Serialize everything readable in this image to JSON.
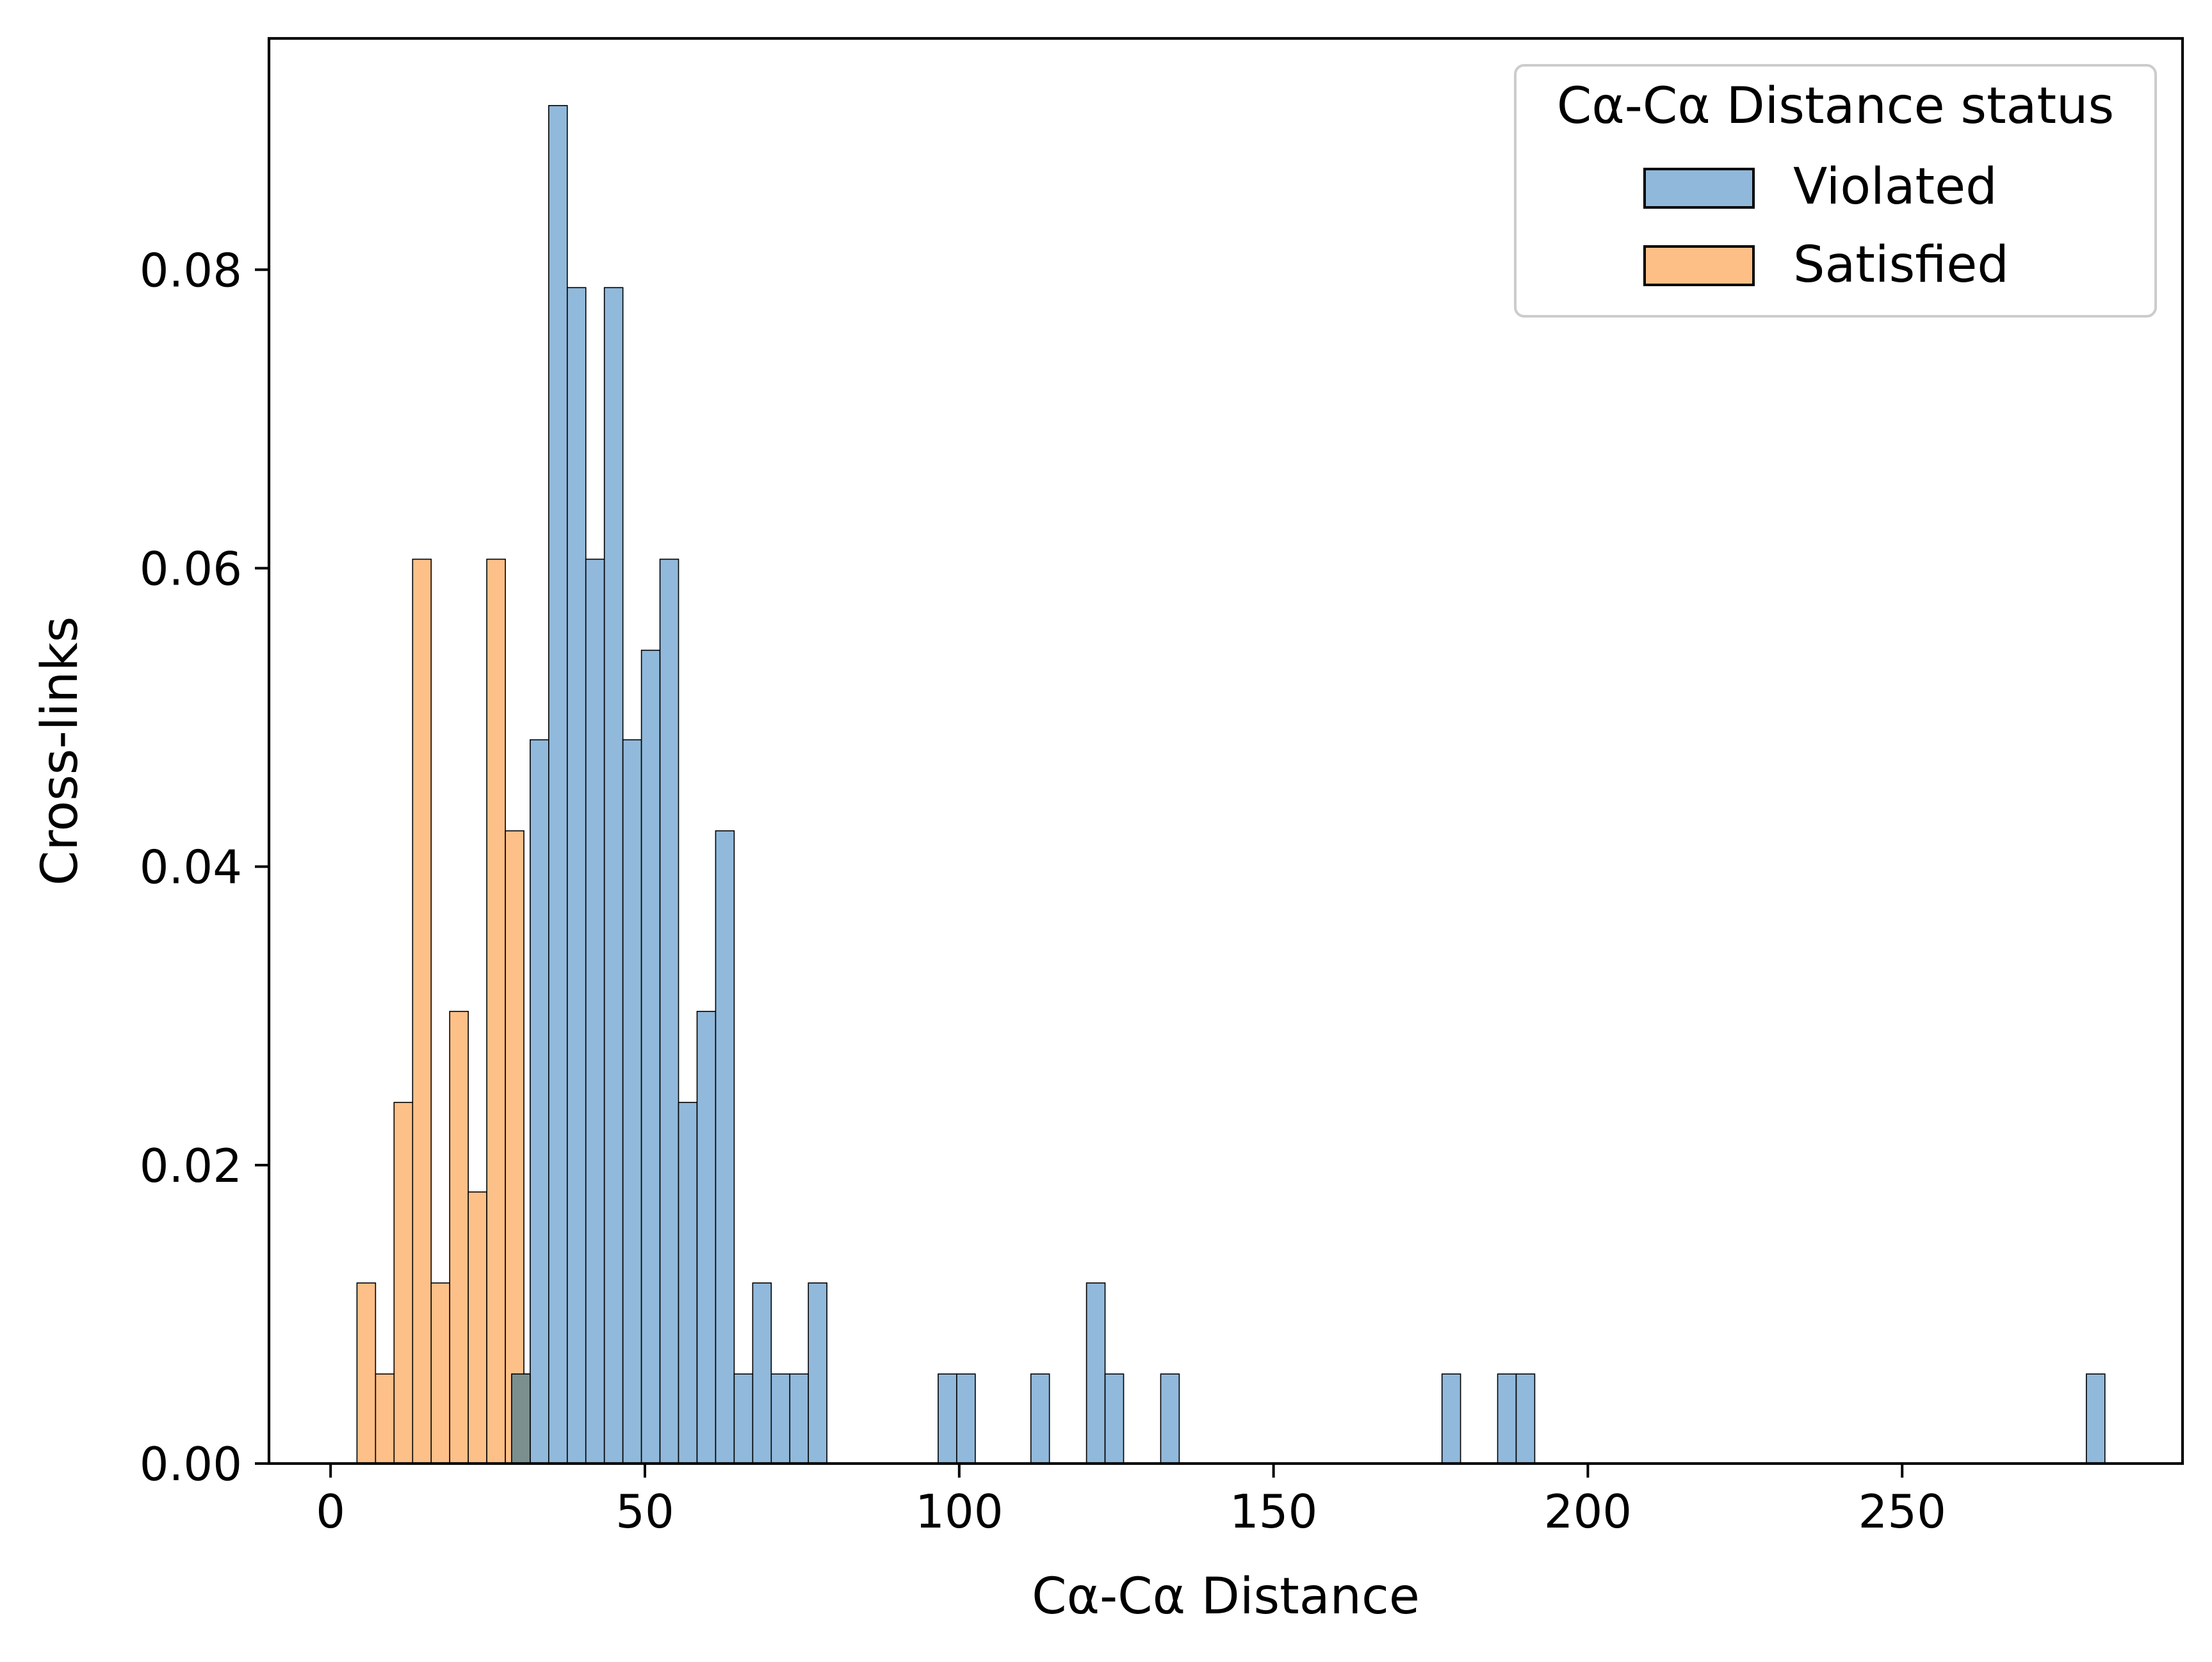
{
  "chart_data": {
    "type": "bar",
    "title": "",
    "xlabel": "Cα-Cα Distance",
    "ylabel": "Cross-links",
    "xlim": [
      -9.8,
      294.6
    ],
    "ylim": [
      0,
      0.0955
    ],
    "x_ticks": [
      0,
      50,
      100,
      150,
      200,
      250
    ],
    "y_ticks": [
      0.0,
      0.02,
      0.04,
      0.06,
      0.08
    ],
    "y_tick_labels": [
      "0.00",
      "0.02",
      "0.04",
      "0.06",
      "0.08"
    ],
    "bin_width": 2.95,
    "grid": false,
    "legend": {
      "title": "Cα-Cα Distance status",
      "position": "top-right"
    },
    "series": [
      {
        "name": "Violated",
        "color": "#8fb8da",
        "bins": [
          {
            "x0": 28.8,
            "y": 0.006
          },
          {
            "x0": 31.75,
            "y": 0.0485
          },
          {
            "x0": 34.7,
            "y": 0.091
          },
          {
            "x0": 37.65,
            "y": 0.0788
          },
          {
            "x0": 40.6,
            "y": 0.0606
          },
          {
            "x0": 43.55,
            "y": 0.0788
          },
          {
            "x0": 46.5,
            "y": 0.0485
          },
          {
            "x0": 49.45,
            "y": 0.0545
          },
          {
            "x0": 52.4,
            "y": 0.0606
          },
          {
            "x0": 55.35,
            "y": 0.0242
          },
          {
            "x0": 58.3,
            "y": 0.0303
          },
          {
            "x0": 61.25,
            "y": 0.0424
          },
          {
            "x0": 64.2,
            "y": 0.006
          },
          {
            "x0": 67.15,
            "y": 0.0121
          },
          {
            "x0": 70.1,
            "y": 0.006
          },
          {
            "x0": 73.05,
            "y": 0.006
          },
          {
            "x0": 76.0,
            "y": 0.0121
          },
          {
            "x0": 96.65,
            "y": 0.006
          },
          {
            "x0": 99.6,
            "y": 0.006
          },
          {
            "x0": 111.4,
            "y": 0.006
          },
          {
            "x0": 120.25,
            "y": 0.0121
          },
          {
            "x0": 123.2,
            "y": 0.006
          },
          {
            "x0": 132.05,
            "y": 0.006
          },
          {
            "x0": 176.8,
            "y": 0.006
          },
          {
            "x0": 185.65,
            "y": 0.006
          },
          {
            "x0": 188.6,
            "y": 0.006
          },
          {
            "x0": 279.3,
            "y": 0.006
          }
        ]
      },
      {
        "name": "Satisfied",
        "color": "#fdbf86",
        "bins": [
          {
            "x0": 4.2,
            "y": 0.0121
          },
          {
            "x0": 7.15,
            "y": 0.006
          },
          {
            "x0": 10.1,
            "y": 0.0242
          },
          {
            "x0": 13.05,
            "y": 0.0606
          },
          {
            "x0": 16.0,
            "y": 0.0121
          },
          {
            "x0": 18.95,
            "y": 0.0303
          },
          {
            "x0": 21.9,
            "y": 0.0182
          },
          {
            "x0": 24.85,
            "y": 0.0606
          },
          {
            "x0": 27.8,
            "y": 0.0424
          }
        ]
      }
    ]
  }
}
